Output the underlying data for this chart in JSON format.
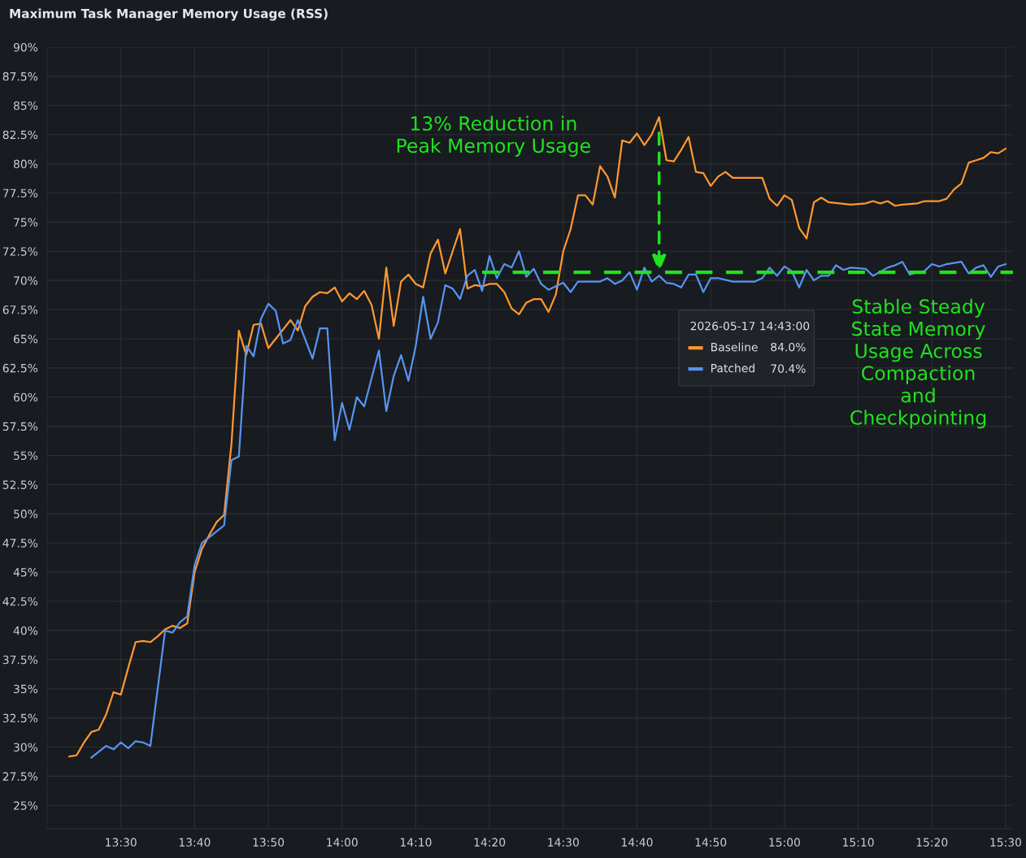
{
  "chart_data": {
    "type": "line",
    "title": "Maximum Task Manager Memory Usage (RSS)",
    "xlim": [
      "2026-05-17T13:20",
      "2026-05-17T15:31"
    ],
    "xticks": [
      {
        "value": "2026-05-17T13:30",
        "label": "13:30"
      },
      {
        "value": "2026-05-17T13:40",
        "label": "13:40"
      },
      {
        "value": "2026-05-17T13:50",
        "label": "13:50"
      },
      {
        "value": "2026-05-17T14:00",
        "label": "14:00"
      },
      {
        "value": "2026-05-17T14:10",
        "label": "14:10"
      },
      {
        "value": "2026-05-17T14:20",
        "label": "14:20"
      },
      {
        "value": "2026-05-17T14:30",
        "label": "14:30"
      },
      {
        "value": "2026-05-17T14:40",
        "label": "14:40"
      },
      {
        "value": "2026-05-17T14:50",
        "label": "14:50"
      },
      {
        "value": "2026-05-17T15:00",
        "label": "15:00"
      },
      {
        "value": "2026-05-17T15:10",
        "label": "15:10"
      },
      {
        "value": "2026-05-17T15:20",
        "label": "15:20"
      },
      {
        "value": "2026-05-17T15:30",
        "label": "15:30"
      }
    ],
    "ylim": [
      23,
      90
    ],
    "yticks": [
      {
        "value": 25,
        "label": "25%"
      },
      {
        "value": 27.5,
        "label": "27.5%"
      },
      {
        "value": 30,
        "label": "30%"
      },
      {
        "value": 32.5,
        "label": "32.5%"
      },
      {
        "value": 35,
        "label": "35%"
      },
      {
        "value": 37.5,
        "label": "37.5%"
      },
      {
        "value": 40,
        "label": "40%"
      },
      {
        "value": 42.5,
        "label": "42.5%"
      },
      {
        "value": 45,
        "label": "45%"
      },
      {
        "value": 47.5,
        "label": "47.5%"
      },
      {
        "value": 50,
        "label": "50%"
      },
      {
        "value": 52.5,
        "label": "52.5%"
      },
      {
        "value": 55,
        "label": "55%"
      },
      {
        "value": 57.5,
        "label": "57.5%"
      },
      {
        "value": 60,
        "label": "60%"
      },
      {
        "value": 62.5,
        "label": "62.5%"
      },
      {
        "value": 65,
        "label": "65%"
      },
      {
        "value": 67.5,
        "label": "67.5%"
      },
      {
        "value": 70,
        "label": "70%"
      },
      {
        "value": 72.5,
        "label": "72.5%"
      },
      {
        "value": 75,
        "label": "75%"
      },
      {
        "value": 77.5,
        "label": "77.5%"
      },
      {
        "value": 80,
        "label": "80%"
      },
      {
        "value": 82.5,
        "label": "82.5%"
      },
      {
        "value": 85,
        "label": "85%"
      },
      {
        "value": 87.5,
        "label": "87.5%"
      },
      {
        "value": 90,
        "label": "90%"
      }
    ],
    "grid": true,
    "legend": "center",
    "legend_title": "2026-05-17 14:43:00",
    "series": [
      {
        "name": "Baseline",
        "color": "#ff9830",
        "x": [
          "2026-05-17T13:23",
          "2026-05-17T13:24",
          "2026-05-17T13:25",
          "2026-05-17T13:26",
          "2026-05-17T13:27",
          "2026-05-17T13:28",
          "2026-05-17T13:29",
          "2026-05-17T13:30",
          "2026-05-17T13:31",
          "2026-05-17T13:32",
          "2026-05-17T13:33",
          "2026-05-17T13:34",
          "2026-05-17T13:35",
          "2026-05-17T13:36",
          "2026-05-17T13:37",
          "2026-05-17T13:38",
          "2026-05-17T13:39",
          "2026-05-17T13:40",
          "2026-05-17T13:41",
          "2026-05-17T13:42",
          "2026-05-17T13:43",
          "2026-05-17T13:44",
          "2026-05-17T13:45",
          "2026-05-17T13:46",
          "2026-05-17T13:47",
          "2026-05-17T13:48",
          "2026-05-17T13:49",
          "2026-05-17T13:50",
          "2026-05-17T13:51",
          "2026-05-17T13:52",
          "2026-05-17T13:53",
          "2026-05-17T13:54",
          "2026-05-17T13:55",
          "2026-05-17T13:56",
          "2026-05-17T13:57",
          "2026-05-17T13:58",
          "2026-05-17T13:59",
          "2026-05-17T14:00",
          "2026-05-17T14:01",
          "2026-05-17T14:02",
          "2026-05-17T14:03",
          "2026-05-17T14:04",
          "2026-05-17T14:05",
          "2026-05-17T14:06",
          "2026-05-17T14:07",
          "2026-05-17T14:08",
          "2026-05-17T14:09",
          "2026-05-17T14:10",
          "2026-05-17T14:11",
          "2026-05-17T14:12",
          "2026-05-17T14:13",
          "2026-05-17T14:14",
          "2026-05-17T14:15",
          "2026-05-17T14:16",
          "2026-05-17T14:17",
          "2026-05-17T14:18",
          "2026-05-17T14:19",
          "2026-05-17T14:20",
          "2026-05-17T14:21",
          "2026-05-17T14:22",
          "2026-05-17T14:23",
          "2026-05-17T14:24",
          "2026-05-17T14:25",
          "2026-05-17T14:26",
          "2026-05-17T14:27",
          "2026-05-17T14:28",
          "2026-05-17T14:29",
          "2026-05-17T14:30",
          "2026-05-17T14:31",
          "2026-05-17T14:32",
          "2026-05-17T14:33",
          "2026-05-17T14:34",
          "2026-05-17T14:35",
          "2026-05-17T14:36",
          "2026-05-17T14:37",
          "2026-05-17T14:38",
          "2026-05-17T14:39",
          "2026-05-17T14:40",
          "2026-05-17T14:41",
          "2026-05-17T14:42",
          "2026-05-17T14:43",
          "2026-05-17T14:44",
          "2026-05-17T14:45",
          "2026-05-17T14:46",
          "2026-05-17T14:47",
          "2026-05-17T14:48",
          "2026-05-17T14:49",
          "2026-05-17T14:50",
          "2026-05-17T14:51",
          "2026-05-17T14:52",
          "2026-05-17T14:53",
          "2026-05-17T14:57",
          "2026-05-17T14:58",
          "2026-05-17T14:59",
          "2026-05-17T15:00",
          "2026-05-17T15:01",
          "2026-05-17T15:02",
          "2026-05-17T15:03",
          "2026-05-17T15:04",
          "2026-05-17T15:05",
          "2026-05-17T15:06",
          "2026-05-17T15:09",
          "2026-05-17T15:11",
          "2026-05-17T15:12",
          "2026-05-17T15:13",
          "2026-05-17T15:14",
          "2026-05-17T15:15",
          "2026-05-17T15:16",
          "2026-05-17T15:18",
          "2026-05-17T15:19",
          "2026-05-17T15:21",
          "2026-05-17T15:22",
          "2026-05-17T15:23",
          "2026-05-17T15:24",
          "2026-05-17T15:25",
          "2026-05-17T15:26",
          "2026-05-17T15:27",
          "2026-05-17T15:28",
          "2026-05-17T15:29",
          "2026-05-17T15:30"
        ],
        "values": [
          29.2,
          29.3,
          30.4,
          31.3,
          31.5,
          32.8,
          34.7,
          34.5,
          36.8,
          39.0,
          39.1,
          39.0,
          39.5,
          40.1,
          40.4,
          40.2,
          40.6,
          45.0,
          47.0,
          48.2,
          49.3,
          49.9,
          56.0,
          65.7,
          63.6,
          66.2,
          66.3,
          64.2,
          65.0,
          65.8,
          66.6,
          65.7,
          67.8,
          68.6,
          69.0,
          68.9,
          69.4,
          68.2,
          68.9,
          68.4,
          69.1,
          67.9,
          65.0,
          71.1,
          66.1,
          69.9,
          70.5,
          69.7,
          69.4,
          72.3,
          73.5,
          70.6,
          72.5,
          74.4,
          69.3,
          69.6,
          69.5,
          69.7,
          69.7,
          69.0,
          67.6,
          67.1,
          68.1,
          68.4,
          68.4,
          67.3,
          68.8,
          72.5,
          74.4,
          77.3,
          77.3,
          76.5,
          79.8,
          78.9,
          77.1,
          82.0,
          81.8,
          82.6,
          81.6,
          82.5,
          84.0,
          80.3,
          80.2,
          81.2,
          82.3,
          79.3,
          79.2,
          78.1,
          78.9,
          79.3,
          78.8,
          78.8,
          77.0,
          76.4,
          77.3,
          76.9,
          74.5,
          73.6,
          76.7,
          77.1,
          76.7,
          76.5,
          76.6,
          76.8,
          76.6,
          76.8,
          76.4,
          76.5,
          76.6,
          76.8,
          76.8,
          77.0,
          77.8,
          78.3,
          80.1,
          80.3,
          80.5,
          81.0,
          80.9,
          81.3
        ]
      },
      {
        "name": "Patched",
        "color": "#5794f2",
        "x": [
          "2026-05-17T13:26",
          "2026-05-17T13:27",
          "2026-05-17T13:28",
          "2026-05-17T13:29",
          "2026-05-17T13:30",
          "2026-05-17T13:31",
          "2026-05-17T13:32",
          "2026-05-17T13:33",
          "2026-05-17T13:34",
          "2026-05-17T13:36",
          "2026-05-17T13:37",
          "2026-05-17T13:38",
          "2026-05-17T13:39",
          "2026-05-17T13:40",
          "2026-05-17T13:41",
          "2026-05-17T13:42",
          "2026-05-17T13:44",
          "2026-05-17T13:45",
          "2026-05-17T13:46",
          "2026-05-17T13:47",
          "2026-05-17T13:48",
          "2026-05-17T13:49",
          "2026-05-17T13:50",
          "2026-05-17T13:51",
          "2026-05-17T13:52",
          "2026-05-17T13:53",
          "2026-05-17T13:54",
          "2026-05-17T13:56",
          "2026-05-17T13:57",
          "2026-05-17T13:58",
          "2026-05-17T13:59",
          "2026-05-17T14:00",
          "2026-05-17T14:01",
          "2026-05-17T14:02",
          "2026-05-17T14:03",
          "2026-05-17T14:05",
          "2026-05-17T14:06",
          "2026-05-17T14:07",
          "2026-05-17T14:08",
          "2026-05-17T14:09",
          "2026-05-17T14:10",
          "2026-05-17T14:11",
          "2026-05-17T14:12",
          "2026-05-17T14:13",
          "2026-05-17T14:14",
          "2026-05-17T14:15",
          "2026-05-17T14:16",
          "2026-05-17T14:17",
          "2026-05-17T14:18",
          "2026-05-17T14:19",
          "2026-05-17T14:20",
          "2026-05-17T14:21",
          "2026-05-17T14:22",
          "2026-05-17T14:23",
          "2026-05-17T14:24",
          "2026-05-17T14:25",
          "2026-05-17T14:26",
          "2026-05-17T14:27",
          "2026-05-17T14:28",
          "2026-05-17T14:29",
          "2026-05-17T14:30",
          "2026-05-17T14:31",
          "2026-05-17T14:32",
          "2026-05-17T14:35",
          "2026-05-17T14:36",
          "2026-05-17T14:37",
          "2026-05-17T14:38",
          "2026-05-17T14:39",
          "2026-05-17T14:40",
          "2026-05-17T14:41",
          "2026-05-17T14:42",
          "2026-05-17T14:43",
          "2026-05-17T14:44",
          "2026-05-17T14:45",
          "2026-05-17T14:46",
          "2026-05-17T14:47",
          "2026-05-17T14:48",
          "2026-05-17T14:49",
          "2026-05-17T14:50",
          "2026-05-17T14:51",
          "2026-05-17T14:53",
          "2026-05-17T14:56",
          "2026-05-17T14:57",
          "2026-05-17T14:58",
          "2026-05-17T14:59",
          "2026-05-17T15:00",
          "2026-05-17T15:01",
          "2026-05-17T15:02",
          "2026-05-17T15:03",
          "2026-05-17T15:04",
          "2026-05-17T15:05",
          "2026-05-17T15:06",
          "2026-05-17T15:07",
          "2026-05-17T15:08",
          "2026-05-17T15:09",
          "2026-05-17T15:11",
          "2026-05-17T15:12",
          "2026-05-17T15:14",
          "2026-05-17T15:15",
          "2026-05-17T15:16",
          "2026-05-17T15:17",
          "2026-05-17T15:18",
          "2026-05-17T15:19",
          "2026-05-17T15:20",
          "2026-05-17T15:21",
          "2026-05-17T15:22",
          "2026-05-17T15:24",
          "2026-05-17T15:25",
          "2026-05-17T15:26",
          "2026-05-17T15:27",
          "2026-05-17T15:28",
          "2026-05-17T15:29",
          "2026-05-17T15:30"
        ],
        "values": [
          29.1,
          29.6,
          30.1,
          29.8,
          30.4,
          29.9,
          30.5,
          30.4,
          30.1,
          40.0,
          39.8,
          40.7,
          41.2,
          45.6,
          47.5,
          48.0,
          49.0,
          54.6,
          54.9,
          64.4,
          63.5,
          66.7,
          68.0,
          67.4,
          64.6,
          64.9,
          66.6,
          63.3,
          65.9,
          65.9,
          56.3,
          59.5,
          57.2,
          60.0,
          59.2,
          64.0,
          58.8,
          61.8,
          63.6,
          61.4,
          64.4,
          68.6,
          65.0,
          66.4,
          69.6,
          69.3,
          68.4,
          70.4,
          70.9,
          69.1,
          72.1,
          70.2,
          71.4,
          71.1,
          72.5,
          70.3,
          71.0,
          69.7,
          69.2,
          69.5,
          69.8,
          69.0,
          69.9,
          69.9,
          70.2,
          69.7,
          70.0,
          70.7,
          69.2,
          71.1,
          69.9,
          70.4,
          69.8,
          69.7,
          69.4,
          70.5,
          70.5,
          69.0,
          70.2,
          70.2,
          69.9,
          69.9,
          70.2,
          71.1,
          70.4,
          71.2,
          70.8,
          69.4,
          70.9,
          70.0,
          70.4,
          70.4,
          71.3,
          70.9,
          71.1,
          71.0,
          70.4,
          71.1,
          71.3,
          71.6,
          70.5,
          70.7,
          70.8,
          71.4,
          71.2,
          71.4,
          71.6,
          70.6,
          71.1,
          71.3,
          70.3,
          71.2,
          71.4
        ]
      },
      {
        "type": "line",
        "color": "#1fe31f",
        "line_style": "dashed",
        "x": [
          "2026-05-17T14:19",
          "2026-05-17T15:31"
        ],
        "values": [
          70.7,
          70.7
        ]
      }
    ],
    "annotations": [
      "13% Reduction in\nPeak Memory Usage",
      "Stable Steady\nState Memory\nUsage Across\nCompaction\nand\nCheckpointing",
      "84.0%",
      "70.4%"
    ]
  }
}
